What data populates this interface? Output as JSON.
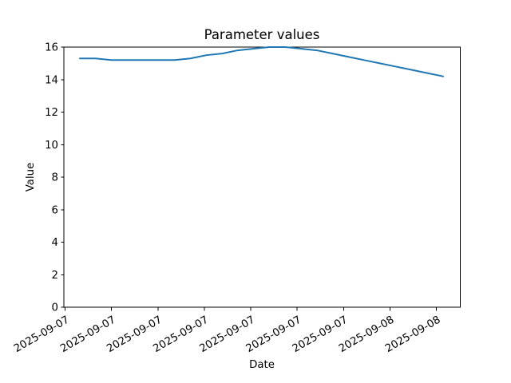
{
  "chart_data": {
    "type": "line",
    "title": "Parameter values",
    "xlabel": "Date",
    "ylabel": "Value",
    "ylim": [
      0,
      16
    ],
    "yticks": [
      0,
      2,
      4,
      6,
      8,
      10,
      12,
      14,
      16
    ],
    "x_tick_labels": [
      "2025-09-07",
      "2025-09-07",
      "2025-09-07",
      "2025-09-07",
      "2025-09-07",
      "2025-09-07",
      "2025-09-07",
      "2025-09-08",
      "2025-09-08"
    ],
    "grid": false,
    "legend": false,
    "line_color": "#1f77b4",
    "axis_color": "#000000",
    "background_color": "#ffffff",
    "series": [
      {
        "values": [
          15.3,
          15.3,
          15.2,
          15.2,
          15.2,
          15.2,
          15.2,
          15.3,
          15.5,
          15.6,
          15.8,
          15.9,
          16.0,
          16.0,
          15.9,
          15.8,
          15.6,
          15.4,
          15.2,
          15.0,
          14.8,
          14.6,
          14.4,
          14.2
        ]
      }
    ]
  }
}
